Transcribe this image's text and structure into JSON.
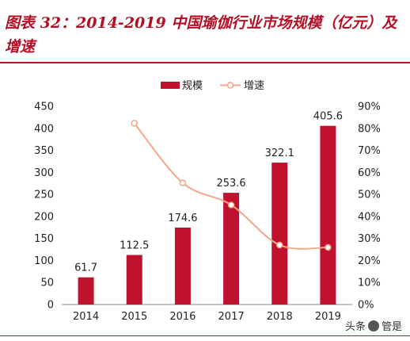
{
  "header": {
    "title": "图表 32：2014-2019 中国瑜伽行业市场规模（亿元）及增速"
  },
  "watermark": {
    "prefix": "头条",
    "brand": "管是"
  },
  "chart_data": {
    "type": "bar",
    "categories": [
      "2014",
      "2015",
      "2016",
      "2017",
      "2018",
      "2019"
    ],
    "series": [
      {
        "name": "规模",
        "type": "bar",
        "axis": "left",
        "color": "#c0112e",
        "values": [
          61.7,
          112.5,
          174.6,
          253.6,
          322.1,
          405.6
        ],
        "labels": [
          "61.7",
          "112.5",
          "174.6",
          "253.6",
          "322.1",
          "405.6"
        ]
      },
      {
        "name": "增速",
        "type": "line",
        "axis": "right",
        "color": "#f4a58a",
        "values": [
          null,
          82.3,
          55.2,
          45.2,
          27.0,
          25.9
        ]
      }
    ],
    "ylim": [
      0,
      450
    ],
    "y2lim": [
      0,
      90
    ],
    "yticks": [
      "0",
      "50",
      "100",
      "150",
      "200",
      "250",
      "300",
      "350",
      "400",
      "450"
    ],
    "y2ticks": [
      "0%",
      "10%",
      "20%",
      "30%",
      "40%",
      "50%",
      "60%",
      "70%",
      "80%",
      "90%"
    ],
    "legend_position": "top-center",
    "grid": false
  }
}
